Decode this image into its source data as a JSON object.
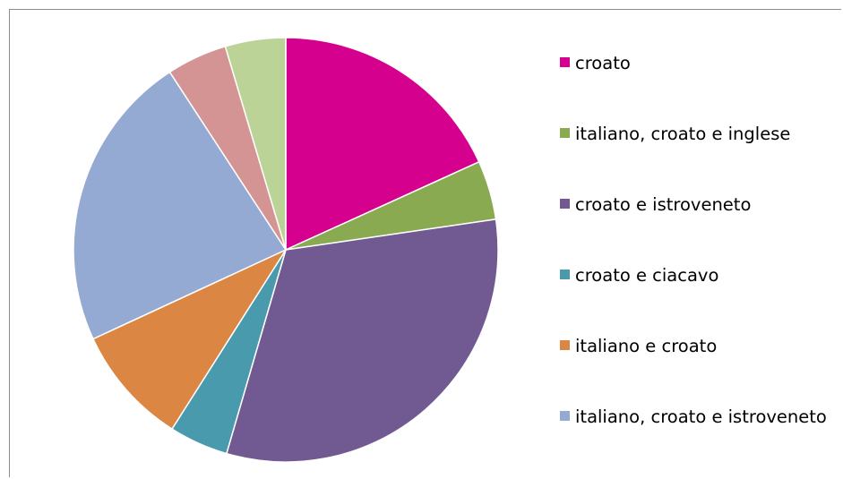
{
  "chart_data": {
    "type": "pie",
    "title": "",
    "categories": [
      "croato",
      "italiano, croato e inglese",
      "croato e istroveneto",
      "croato e ciacavo",
      "italiano e croato",
      "italiano, croato e istroveneto",
      "",
      ""
    ],
    "values": [
      18.2,
      4.5,
      31.8,
      4.5,
      9.1,
      22.7,
      4.6,
      4.6
    ],
    "colors": [
      "#d6008f",
      "#8aaa52",
      "#715a92",
      "#4a9aad",
      "#dc8643",
      "#95aad3",
      "#d49494",
      "#bcd398"
    ],
    "start_angle_deg": 0,
    "direction": "clockwise",
    "legend": {
      "position": "right",
      "entries": [
        {
          "label": "croato",
          "color": "#d6008f"
        },
        {
          "label": "italiano, croato e inglese",
          "color": "#8aaa52"
        },
        {
          "label": "croato e istroveneto",
          "color": "#715a92"
        },
        {
          "label": "croato e ciacavo",
          "color": "#4a9aad"
        },
        {
          "label": "italiano e croato",
          "color": "#dc8643"
        },
        {
          "label": "italiano, croato e istroveneto",
          "color": "#95aad3"
        }
      ]
    }
  }
}
